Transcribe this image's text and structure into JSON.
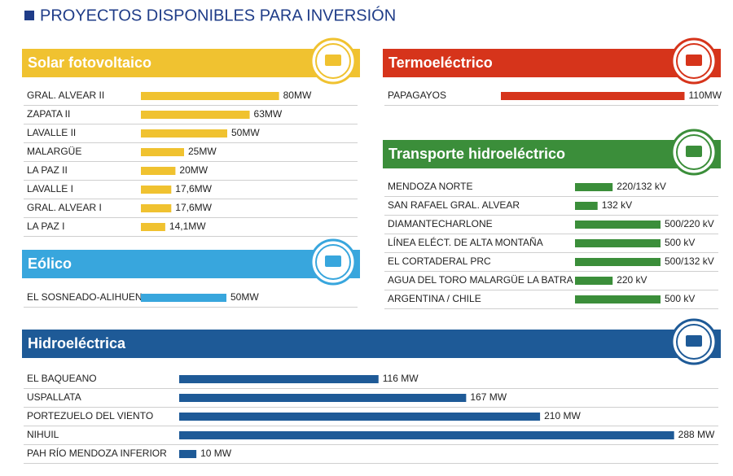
{
  "title": "PROYECTOS DISPONIBLES PARA INVERSIÓN",
  "chart_data": [
    {
      "type": "bar",
      "title": "Solar fotovoltaico",
      "color": "#f0c230",
      "categories": [
        "GRAL. ALVEAR II",
        "ZAPATA II",
        "LAVALLE II",
        "MALARGÜE",
        "LA PAZ II",
        "LAVALLE I",
        "GRAL. ALVEAR I",
        "LA PAZ I"
      ],
      "values": [
        80,
        63,
        50,
        25,
        20,
        17.6,
        17.6,
        14.1
      ],
      "value_labels": [
        "80MW",
        "63MW",
        "50MW",
        "25MW",
        "20MW",
        "17,6MW",
        "17,6MW",
        "14,1MW"
      ]
    },
    {
      "type": "bar",
      "title": "Eólico",
      "color": "#38a6dd",
      "categories": [
        "EL SOSNEADO-ALIHUEN"
      ],
      "values": [
        50
      ],
      "value_labels": [
        "50MW"
      ]
    },
    {
      "type": "bar",
      "title": "Termoeléctrico",
      "color": "#d6341b",
      "categories": [
        "PAPAGAYOS"
      ],
      "values": [
        110
      ],
      "value_labels": [
        "110MW"
      ]
    },
    {
      "type": "bar",
      "title": "Transporte hidroeléctrico",
      "color": "#3b8e3a",
      "categories": [
        "MENDOZA NORTE",
        "SAN RAFAEL  GRAL. ALVEAR",
        "DIAMANTECHARLONE",
        "LÍNEA ELÉCT. DE ALTA MONTAÑA",
        "EL CORTADERAL  PRC",
        "AGUA DEL TORO  MALARGÜE  LA BATRA",
        "ARGENTINA / CHILE"
      ],
      "values": [
        220,
        132,
        500,
        500,
        500,
        220,
        500
      ],
      "value_labels": [
        "220/132 kV",
        "132 kV",
        "500/220 kV",
        "500 kV",
        "500/132 kV",
        "220 kV",
        "500 kV"
      ]
    },
    {
      "type": "bar",
      "title": "Hidroeléctrica",
      "color": "#1e5a97",
      "categories": [
        "EL BAQUEANO",
        "USPALLATA",
        "PORTEZUELO DEL VIENTO",
        "NIHUIL",
        "PAH RÍO MENDOZA INFERIOR"
      ],
      "values": [
        116,
        167,
        210,
        288,
        10
      ],
      "value_labels": [
        "116 MW",
        "167 MW",
        "210 MW",
        "288 MW",
        "10 MW"
      ]
    }
  ]
}
